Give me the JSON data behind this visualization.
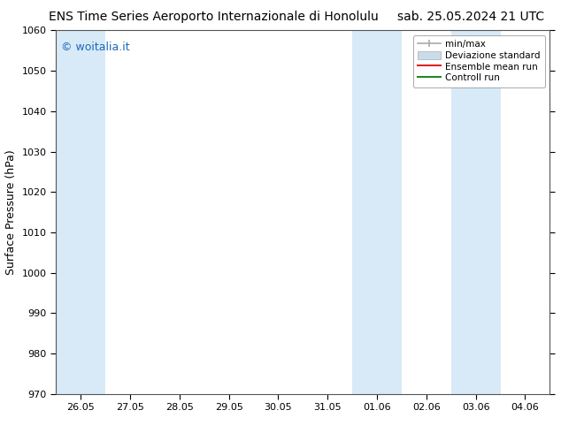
{
  "title_left": "ENS Time Series Aeroporto Internazionale di Honolulu",
  "title_right": "sab. 25.05.2024 21 UTC",
  "ylabel": "Surface Pressure (hPa)",
  "ylim": [
    970,
    1060
  ],
  "yticks": [
    970,
    980,
    990,
    1000,
    1010,
    1020,
    1030,
    1040,
    1050,
    1060
  ],
  "xtick_labels": [
    "26.05",
    "27.05",
    "28.05",
    "29.05",
    "30.05",
    "31.05",
    "01.06",
    "02.06",
    "03.06",
    "04.06"
  ],
  "num_xticks": 10,
  "shaded_bands": [
    {
      "xi": 0,
      "xf": 1,
      "color": "#d8eaf7"
    },
    {
      "xi": 6,
      "xf": 7,
      "color": "#d8eaf7"
    },
    {
      "xi": 8,
      "xf": 9,
      "color": "#d8eaf7"
    }
  ],
  "watermark_text": "© woitalia.it",
  "watermark_color": "#1a6aba",
  "background_color": "#ffffff",
  "legend_minmax_color": "#aaaaaa",
  "legend_std_color": "#c8dcea",
  "legend_ensemble_color": "#dd2222",
  "legend_control_color": "#228822",
  "title_fontsize": 10,
  "ylabel_fontsize": 9,
  "tick_fontsize": 8,
  "legend_fontsize": 7.5
}
